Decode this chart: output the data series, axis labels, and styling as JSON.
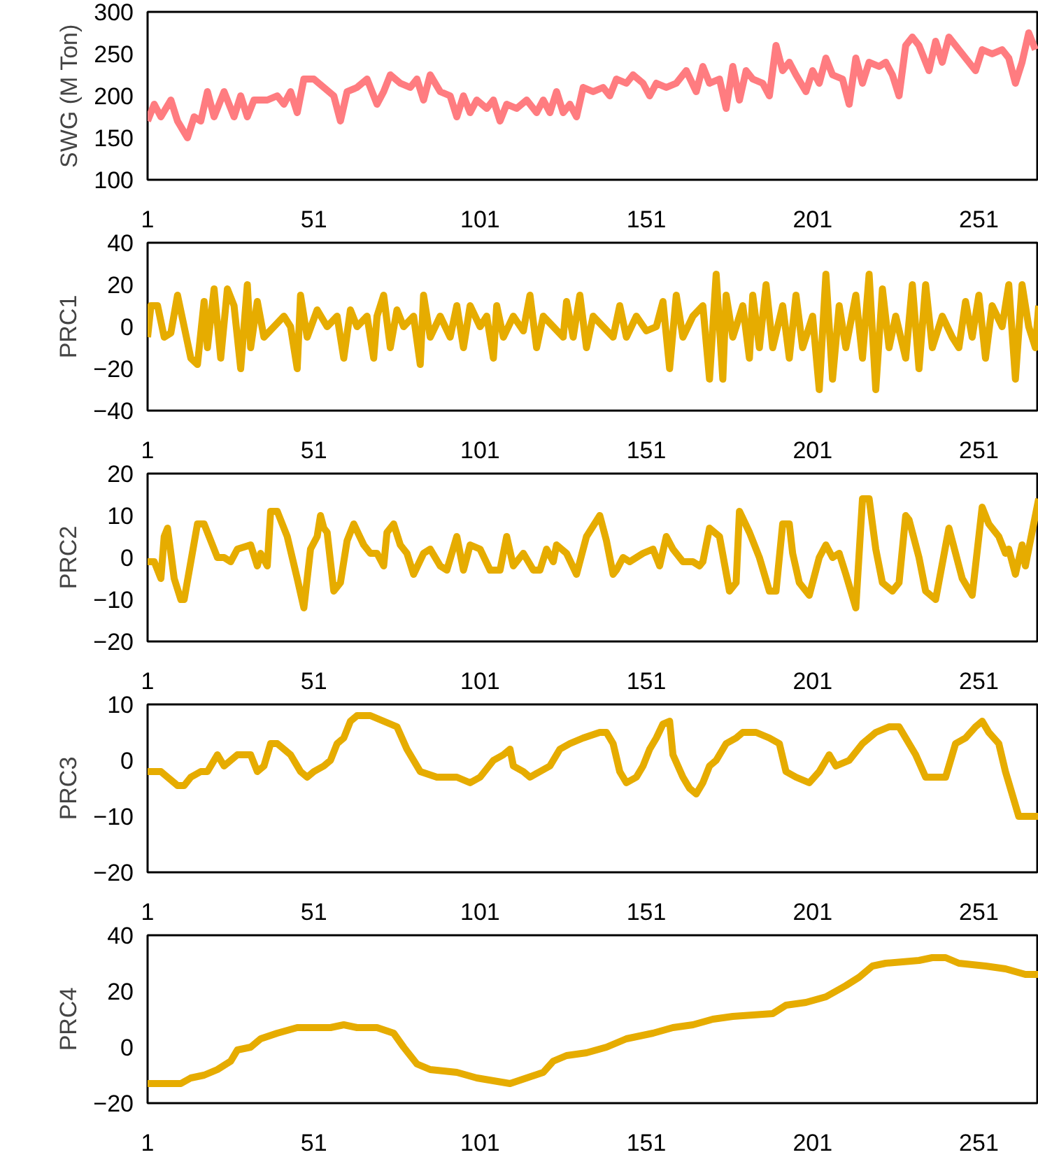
{
  "chart_data": [
    {
      "type": "line",
      "ylabel": "SWG (M Ton)",
      "xlim": [
        1,
        269
      ],
      "xticks": [
        1,
        51,
        101,
        151,
        201,
        251
      ],
      "ylim": [
        100,
        300
      ],
      "yticks": [
        100,
        150,
        200,
        250,
        300
      ],
      "color": "#ff7c80",
      "x": [
        1,
        3,
        5,
        8,
        10,
        13,
        15,
        17,
        19,
        21,
        24,
        27,
        29,
        31,
        33,
        37,
        40,
        42,
        44,
        46,
        48,
        51,
        54,
        57,
        59,
        61,
        64,
        67,
        70,
        72,
        74,
        77,
        80,
        82,
        84,
        86,
        89,
        92,
        94,
        96,
        98,
        100,
        103,
        105,
        107,
        109,
        112,
        115,
        118,
        120,
        122,
        124,
        126,
        128,
        130,
        132,
        135,
        138,
        140,
        142,
        145,
        147,
        150,
        152,
        154,
        157,
        160,
        163,
        166,
        168,
        170,
        173,
        175,
        177,
        179,
        181,
        183,
        186,
        188,
        190,
        192,
        194,
        196,
        199,
        201,
        203,
        205,
        207,
        210,
        212,
        214,
        216,
        218,
        221,
        223,
        225,
        227,
        229,
        231,
        233,
        236,
        238,
        240,
        242,
        245,
        248,
        250,
        252,
        255,
        258,
        260,
        262,
        264,
        266,
        268
      ],
      "values": [
        170,
        190,
        175,
        195,
        170,
        150,
        175,
        170,
        205,
        175,
        205,
        175,
        200,
        175,
        195,
        195,
        200,
        190,
        205,
        180,
        220,
        220,
        210,
        200,
        170,
        205,
        210,
        220,
        190,
        205,
        225,
        215,
        210,
        220,
        195,
        225,
        205,
        200,
        175,
        200,
        180,
        195,
        185,
        195,
        170,
        190,
        185,
        195,
        180,
        195,
        180,
        205,
        180,
        190,
        175,
        210,
        205,
        210,
        200,
        220,
        215,
        225,
        215,
        200,
        215,
        210,
        215,
        230,
        205,
        235,
        215,
        220,
        185,
        235,
        195,
        230,
        220,
        215,
        200,
        260,
        230,
        240,
        225,
        205,
        230,
        215,
        245,
        225,
        220,
        190,
        245,
        215,
        240,
        235,
        240,
        225,
        200,
        260,
        270,
        260,
        230,
        265,
        240,
        270,
        255,
        240,
        230,
        255,
        250,
        255,
        245,
        215,
        240,
        275,
        255
      ]
    },
    {
      "type": "line",
      "ylabel": "PRC1",
      "xlim": [
        1,
        269
      ],
      "xticks": [
        1,
        51,
        101,
        151,
        201,
        251
      ],
      "ylim": [
        -40,
        40
      ],
      "yticks": [
        -40,
        -20,
        0,
        20,
        40
      ],
      "color": "#e6ac00",
      "x": [
        1,
        2,
        4,
        6,
        8,
        10,
        12,
        14,
        16,
        18,
        19,
        21,
        23,
        25,
        27,
        29,
        31,
        32,
        34,
        36,
        39,
        42,
        44,
        46,
        47,
        49,
        52,
        55,
        58,
        60,
        62,
        64,
        67,
        69,
        70,
        72,
        74,
        76,
        78,
        81,
        83,
        84,
        86,
        89,
        92,
        94,
        96,
        98,
        101,
        103,
        105,
        106,
        108,
        111,
        114,
        116,
        118,
        120,
        123,
        126,
        127,
        129,
        131,
        133,
        135,
        138,
        141,
        143,
        145,
        148,
        151,
        154,
        156,
        158,
        160,
        162,
        165,
        168,
        170,
        172,
        174,
        175,
        177,
        180,
        182,
        183,
        185,
        187,
        189,
        192,
        194,
        196,
        198,
        201,
        203,
        205,
        207,
        209,
        211,
        214,
        216,
        218,
        220,
        222,
        224,
        226,
        229,
        231,
        233,
        235,
        237,
        240,
        243,
        245,
        247,
        249,
        251,
        253,
        255,
        258,
        260,
        262,
        264,
        266,
        268,
        269
      ],
      "values": [
        -5,
        10,
        10,
        -5,
        -3,
        15,
        0,
        -15,
        -18,
        12,
        -10,
        18,
        -15,
        18,
        10,
        -20,
        20,
        -10,
        12,
        -5,
        0,
        5,
        0,
        -20,
        15,
        -5,
        8,
        0,
        5,
        -15,
        8,
        0,
        5,
        -15,
        5,
        15,
        -10,
        8,
        0,
        5,
        -18,
        15,
        -5,
        5,
        -5,
        10,
        -10,
        10,
        0,
        5,
        -15,
        10,
        -5,
        5,
        -2,
        15,
        -10,
        5,
        0,
        -5,
        12,
        -5,
        15,
        -10,
        5,
        0,
        -5,
        10,
        -5,
        5,
        -2,
        0,
        12,
        -20,
        15,
        -5,
        5,
        10,
        -25,
        25,
        -25,
        15,
        -5,
        10,
        -15,
        15,
        -10,
        20,
        -10,
        10,
        -15,
        15,
        -10,
        5,
        -30,
        25,
        -25,
        10,
        -10,
        15,
        -15,
        25,
        -30,
        18,
        -10,
        5,
        -15,
        20,
        -20,
        20,
        -10,
        5,
        -5,
        -10,
        12,
        -5,
        15,
        -15,
        10,
        0,
        20,
        -25,
        20,
        0,
        -10,
        10
      ]
    },
    {
      "type": "line",
      "ylabel": "PRC2",
      "xlim": [
        1,
        269
      ],
      "xticks": [
        1,
        51,
        101,
        151,
        201,
        251
      ],
      "ylim": [
        -20,
        20
      ],
      "yticks": [
        -20,
        -10,
        0,
        10,
        20
      ],
      "color": "#e6ac00",
      "x": [
        1,
        3,
        5,
        6,
        7,
        9,
        11,
        12,
        16,
        18,
        22,
        24,
        26,
        28,
        32,
        34,
        35,
        37,
        38,
        40,
        43,
        46,
        48,
        50,
        52,
        53,
        54,
        55,
        57,
        59,
        61,
        63,
        66,
        68,
        70,
        72,
        73,
        75,
        77,
        79,
        81,
        84,
        86,
        89,
        91,
        94,
        96,
        98,
        101,
        104,
        107,
        109,
        111,
        114,
        117,
        119,
        121,
        123,
        124,
        127,
        130,
        133,
        137,
        139,
        141,
        142,
        144,
        146,
        150,
        153,
        155,
        157,
        159,
        162,
        165,
        167,
        168,
        170,
        173,
        176,
        178,
        179,
        182,
        185,
        188,
        190,
        192,
        194,
        195,
        197,
        200,
        203,
        205,
        207,
        209,
        211,
        214,
        216,
        218,
        220,
        222,
        225,
        227,
        229,
        230,
        233,
        235,
        238,
        242,
        244,
        246,
        249,
        252,
        254,
        257,
        259,
        260,
        262,
        264,
        265,
        269
      ],
      "values": [
        -1,
        -1,
        -5,
        5,
        7,
        -5,
        -10,
        -10,
        8,
        8,
        0,
        0,
        -1,
        2,
        3,
        -2,
        1,
        -2,
        11,
        11,
        5,
        -5,
        -12,
        2,
        5,
        10,
        7,
        6,
        -8,
        -6,
        4,
        8,
        3,
        1,
        1,
        -2,
        6,
        8,
        3,
        1,
        -4,
        1,
        2,
        -2,
        -3,
        5,
        -3,
        3,
        2,
        -3,
        -3,
        5,
        -2,
        1,
        -3,
        -3,
        2,
        -1,
        3,
        1,
        -4,
        5,
        10,
        4,
        -4,
        -3,
        0,
        -1,
        1,
        2,
        -2,
        5,
        2,
        -1,
        -1,
        -2,
        -1,
        7,
        5,
        -8,
        -6,
        11,
        6,
        0,
        -8,
        -8,
        8,
        8,
        1,
        -6,
        -9,
        0,
        3,
        0,
        1,
        -4,
        -12,
        14,
        14,
        2,
        -6,
        -8,
        -6,
        10,
        9,
        0,
        -8,
        -10,
        7,
        1,
        -5,
        -9,
        12,
        8,
        5,
        1,
        2,
        -4,
        3,
        -2,
        14
      ]
    },
    {
      "type": "line",
      "ylabel": "PRC3",
      "xlim": [
        1,
        269
      ],
      "xticks": [
        1,
        51,
        101,
        151,
        201,
        251
      ],
      "ylim": [
        -20,
        10
      ],
      "yticks": [
        -20,
        -10,
        0,
        10
      ],
      "color": "#e6ac00",
      "x": [
        1,
        5,
        7,
        10,
        12,
        14,
        17,
        19,
        22,
        24,
        26,
        28,
        32,
        34,
        36,
        38,
        40,
        44,
        47,
        49,
        51,
        54,
        56,
        58,
        60,
        62,
        64,
        68,
        72,
        76,
        79,
        83,
        88,
        94,
        98,
        101,
        105,
        108,
        110,
        111,
        114,
        116,
        119,
        122,
        125,
        128,
        132,
        137,
        139,
        141,
        143,
        145,
        148,
        150,
        152,
        154,
        156,
        158,
        159,
        162,
        164,
        166,
        168,
        170,
        172,
        175,
        178,
        180,
        184,
        188,
        191,
        193,
        196,
        200,
        203,
        206,
        208,
        212,
        216,
        220,
        224,
        227,
        229,
        232,
        235,
        241,
        244,
        247,
        250,
        252,
        254,
        257,
        259,
        263,
        269
      ],
      "values": [
        -2,
        -2,
        -3,
        -4.5,
        -4.5,
        -3,
        -2,
        -2,
        1,
        -1,
        0,
        1,
        1,
        -2,
        -1,
        3,
        3,
        1,
        -2,
        -3,
        -2,
        -1,
        0,
        3,
        4,
        7,
        8,
        8,
        7,
        6,
        2,
        -2,
        -3,
        -3,
        -4,
        -3,
        0,
        1,
        2,
        -1,
        -2,
        -3,
        -2,
        -1,
        2,
        3,
        4,
        5,
        5,
        3,
        -2,
        -4,
        -3,
        -1,
        2,
        4,
        6.5,
        7,
        1,
        -3,
        -5,
        -6,
        -4,
        -1,
        0,
        3,
        4,
        5,
        5,
        4,
        3,
        -2,
        -3,
        -4,
        -2,
        1,
        -1,
        0,
        3,
        5,
        6,
        6,
        4,
        1,
        -3,
        -3,
        3,
        4,
        6,
        7,
        5,
        3,
        -2,
        -10,
        -10
      ]
    },
    {
      "type": "line",
      "ylabel": "PRC4",
      "xlim": [
        1,
        269
      ],
      "xticks": [
        1,
        51,
        101,
        151,
        201,
        251
      ],
      "ylim": [
        -20,
        40
      ],
      "yticks": [
        -20,
        0,
        20,
        40
      ],
      "color": "#e6ac00",
      "x": [
        1,
        11,
        14,
        18,
        22,
        26,
        28,
        32,
        35,
        40,
        46,
        56,
        60,
        64,
        70,
        75,
        78,
        82,
        86,
        94,
        100,
        105,
        110,
        115,
        120,
        123,
        127,
        133,
        139,
        145,
        153,
        159,
        165,
        171,
        177,
        189,
        193,
        199,
        205,
        211,
        215,
        219,
        223,
        233,
        237,
        241,
        245,
        253,
        259,
        265,
        269
      ],
      "values": [
        -13,
        -13,
        -11,
        -10,
        -8,
        -5,
        -1,
        0,
        3,
        5,
        7,
        7,
        8,
        7,
        7,
        5,
        0,
        -6,
        -8,
        -9,
        -11,
        -12,
        -13,
        -11,
        -9,
        -5,
        -3,
        -2,
        0,
        3,
        5,
        7,
        8,
        10,
        11,
        12,
        15,
        16,
        18,
        22,
        25,
        29,
        30,
        31,
        32,
        32,
        30,
        29,
        28,
        26,
        26
      ]
    }
  ]
}
